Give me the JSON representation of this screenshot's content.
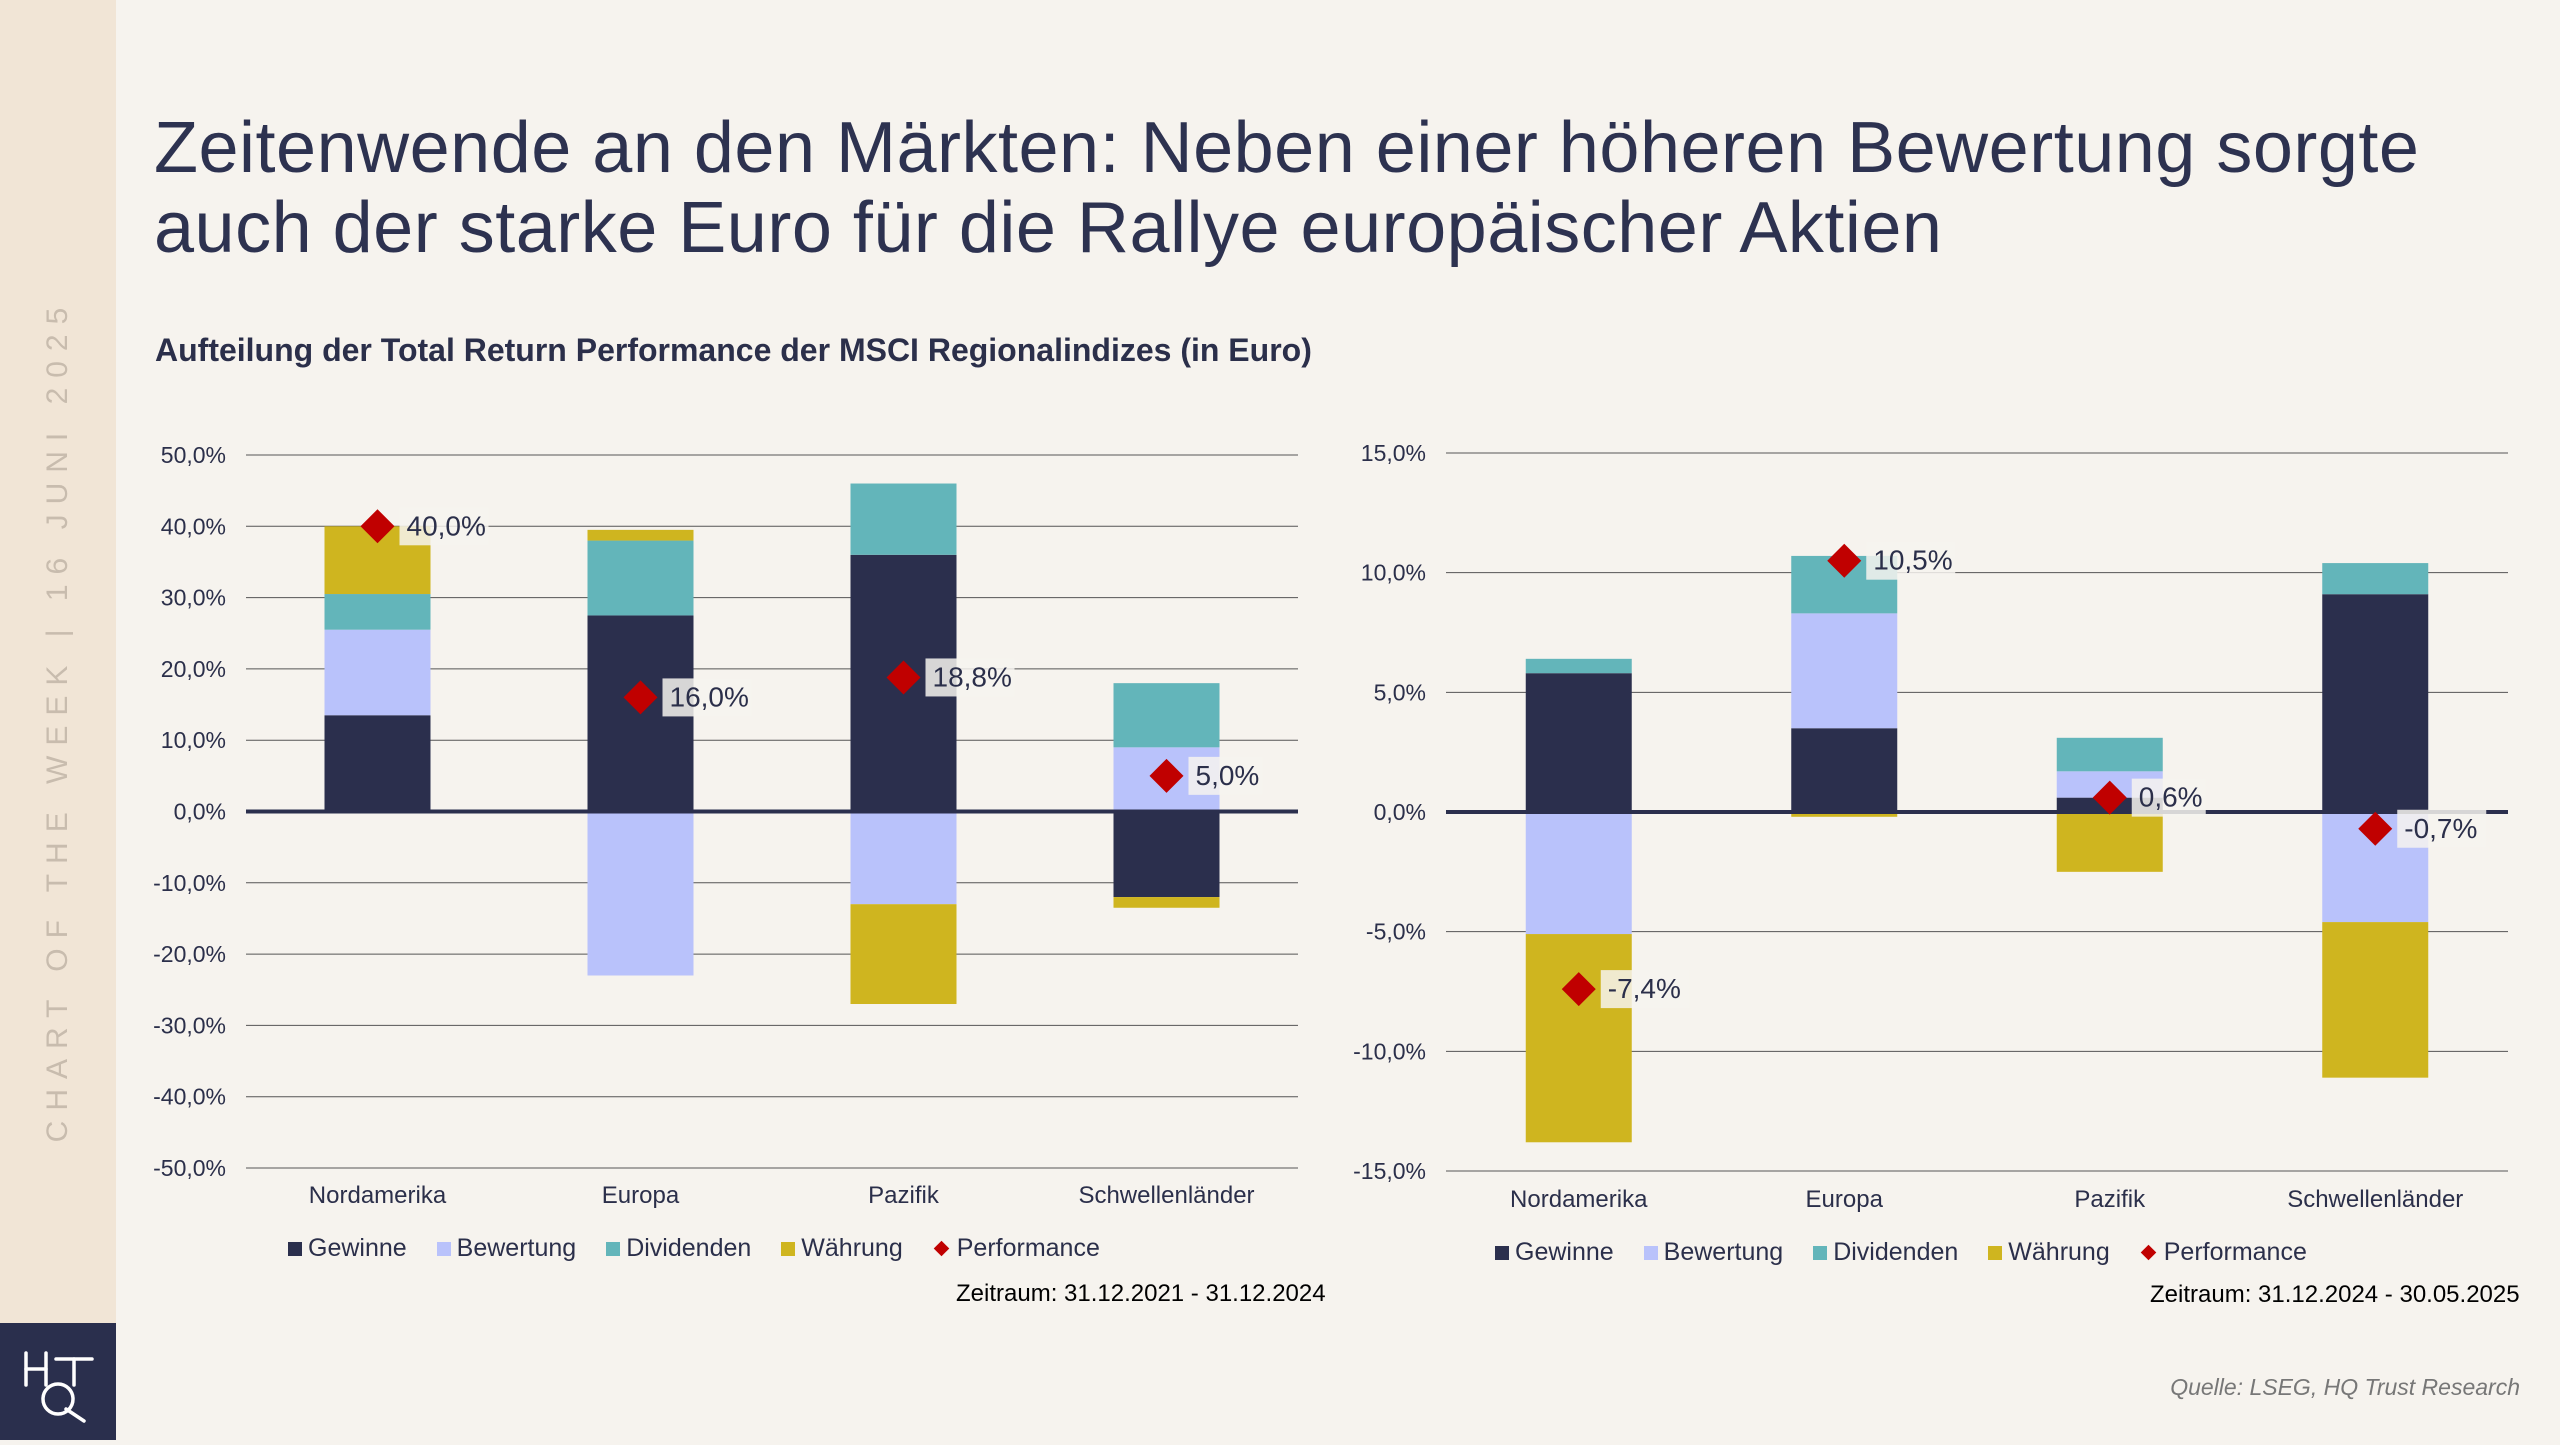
{
  "sidebar": {
    "vertical_text": "CHART OF THE WEEK | 16 JUNI 2025",
    "logo": "HQT"
  },
  "title": "Zeitenwende an den Märkten: Neben einer höheren Bewertung sorgte auch der starke Euro für die Rallye europäischer Aktien",
  "subtitle": "Aufteilung der Total Return Performance der MSCI Regionalindizes (in Euro)",
  "colors": {
    "Gewinne": "#2b2f4d",
    "Bewertung": "#b9c2fb",
    "Dividenden": "#63b5ba",
    "Währung": "#cfb51f",
    "Performance": "#c00000"
  },
  "legend": [
    "Gewinne",
    "Bewertung",
    "Dividenden",
    "Währung",
    "Performance"
  ],
  "source": "Quelle: LSEG, HQ Trust Research",
  "chart_data": [
    {
      "type": "bar",
      "stacked": true,
      "period": "Zeitraum: 31.12.2021 - 31.12.2024",
      "categories": [
        "Nordamerika",
        "Europa",
        "Pazifik",
        "Schwellenländer"
      ],
      "ylim": [
        -50,
        50
      ],
      "yticks": [
        "50,0%",
        "40,0%",
        "30,0%",
        "20,0%",
        "10,0%",
        "0,0%",
        "-10,0%",
        "-20,0%",
        "-30,0%",
        "-40,0%",
        "-50,0%"
      ],
      "series": [
        {
          "name": "Gewinne",
          "values": [
            13.5,
            27.5,
            36.0,
            -12.0
          ]
        },
        {
          "name": "Bewertung",
          "values": [
            12.0,
            -23.0,
            -13.0,
            9.0
          ]
        },
        {
          "name": "Dividenden",
          "values": [
            5.0,
            10.5,
            10.0,
            9.0
          ]
        },
        {
          "name": "Währung",
          "values": [
            9.5,
            1.5,
            -14.0,
            -1.5
          ]
        }
      ],
      "performance": [
        40.0,
        16.0,
        18.8,
        5.0
      ],
      "performance_labels": [
        "40,0%",
        "16,0%",
        "18,8%",
        "5,0%"
      ],
      "grid": true,
      "legend_position": "bottom"
    },
    {
      "type": "bar",
      "stacked": true,
      "period": "Zeitraum: 31.12.2024 - 30.05.2025",
      "categories": [
        "Nordamerika",
        "Europa",
        "Pazifik",
        "Schwellenländer"
      ],
      "ylim": [
        -15,
        15
      ],
      "yticks": [
        "15,0%",
        "10,0%",
        "5,0%",
        "0,0%",
        "-5,0%",
        "-10,0%",
        "-15,0%"
      ],
      "series": [
        {
          "name": "Gewinne",
          "values": [
            5.8,
            3.5,
            0.6,
            9.1
          ]
        },
        {
          "name": "Bewertung",
          "values": [
            -5.1,
            4.8,
            1.1,
            -4.6
          ]
        },
        {
          "name": "Dividenden",
          "values": [
            0.6,
            2.4,
            1.4,
            1.3
          ]
        },
        {
          "name": "Währung",
          "values": [
            -8.7,
            -0.2,
            -2.5,
            -6.5
          ]
        }
      ],
      "performance": [
        -7.4,
        10.5,
        0.6,
        -0.7
      ],
      "performance_labels": [
        "-7,4%",
        "10,5%",
        "0,6%",
        "-0,7%"
      ],
      "grid": true,
      "legend_position": "bottom"
    }
  ]
}
